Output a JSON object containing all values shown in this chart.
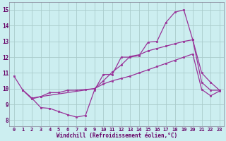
{
  "background_color": "#cceef0",
  "line_color": "#993399",
  "grid_color": "#aacccc",
  "xlabel": "Windchill (Refroidissement éolien,°C)",
  "yticks": [
    8,
    9,
    10,
    11,
    12,
    13,
    14,
    15
  ],
  "xlim": [
    -0.5,
    23.5
  ],
  "ylim": [
    7.6,
    15.5
  ],
  "xtick_labels": [
    "0",
    "1",
    "2",
    "3",
    "4",
    "5",
    "6",
    "7",
    "8",
    "9",
    "10",
    "11",
    "12",
    "13",
    "14",
    "15",
    "16",
    "17",
    "18",
    "19",
    "20",
    "21",
    "22",
    "23"
  ],
  "line1_x": [
    0,
    1,
    2,
    3,
    4,
    5,
    6,
    7,
    8,
    9,
    10,
    11,
    12,
    13,
    14,
    15,
    16,
    17,
    18,
    19,
    20,
    21,
    22,
    23
  ],
  "line1_y": [
    10.8,
    9.9,
    9.4,
    8.8,
    8.75,
    8.55,
    8.35,
    8.2,
    8.3,
    9.9,
    10.9,
    10.9,
    12.0,
    12.0,
    12.1,
    12.95,
    13.0,
    14.2,
    14.85,
    15.0,
    13.1,
    11.0,
    10.4,
    9.9
  ],
  "line2_x": [
    1,
    2,
    3,
    9,
    10,
    11,
    12,
    13,
    14,
    15,
    16,
    17,
    18,
    19,
    20,
    21,
    22,
    23
  ],
  "line2_y": [
    9.9,
    9.4,
    9.5,
    10.0,
    10.5,
    11.05,
    11.5,
    12.05,
    12.15,
    12.4,
    12.55,
    12.7,
    12.85,
    13.0,
    13.1,
    10.4,
    9.9,
    9.9
  ],
  "line3_x": [
    1,
    2,
    3,
    4,
    5,
    6,
    7,
    8,
    9,
    10,
    11,
    12,
    13,
    14,
    15,
    16,
    17,
    18,
    19,
    20,
    21,
    22,
    23
  ],
  "line3_y": [
    9.9,
    9.35,
    9.5,
    9.75,
    9.75,
    9.9,
    9.9,
    9.95,
    10.0,
    10.3,
    10.5,
    10.65,
    10.8,
    11.0,
    11.2,
    11.4,
    11.6,
    11.8,
    12.0,
    12.2,
    9.95,
    9.55,
    9.85
  ]
}
